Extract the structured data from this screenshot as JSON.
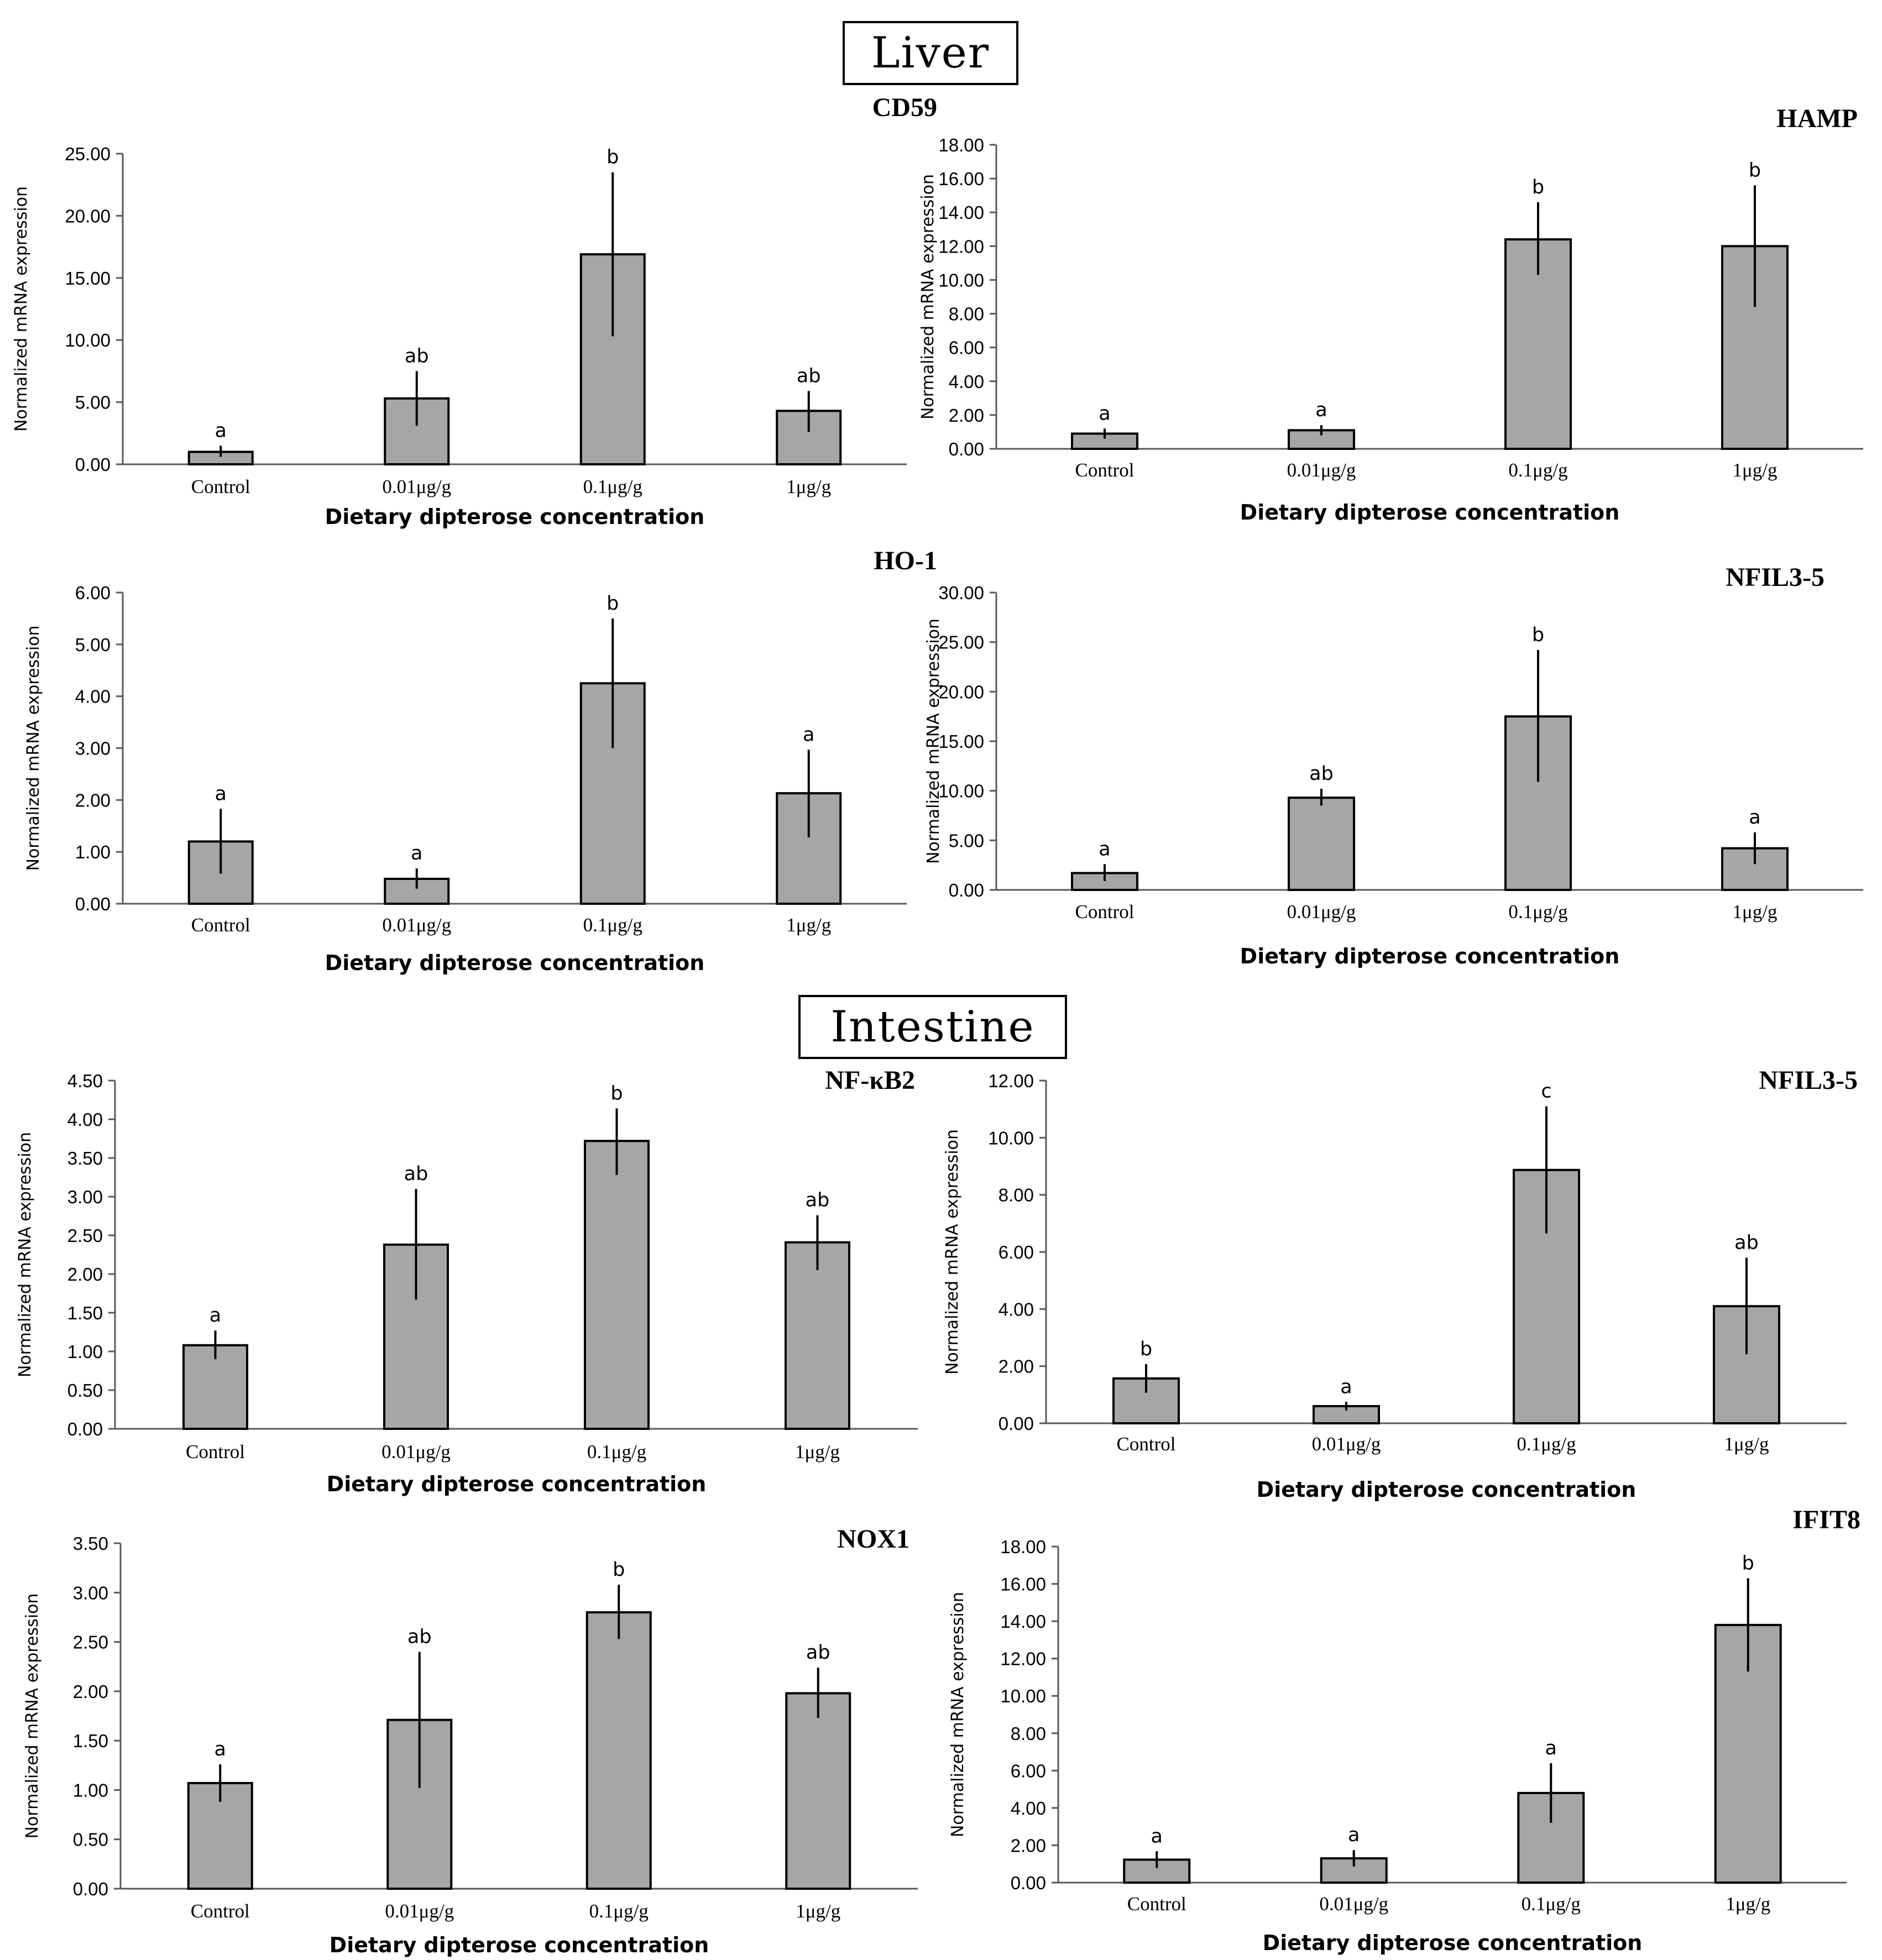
{
  "sections": {
    "liver": "Liver",
    "intestine": "Intestine"
  },
  "colors": {
    "bar_fill": "#a6a6a6",
    "bar_stroke": "#000000",
    "axis": "#595959"
  },
  "chart_data": [
    {
      "id": "liver-cd59",
      "type": "bar",
      "title": "CD59",
      "xlabel": "Dietary dipterose concentration",
      "ylabel": "Normalized mRNA expression",
      "categories": [
        "Control",
        "0.01μg/g",
        "0.1μg/g",
        "1μg/g"
      ],
      "values": [
        1.0,
        5.3,
        16.9,
        4.3
      ],
      "error_low": [
        0.6,
        3.1,
        10.3,
        2.6
      ],
      "error_high": [
        1.5,
        7.5,
        23.5,
        5.9
      ],
      "significance": [
        "a",
        "ab",
        "b",
        "ab"
      ],
      "ylim": [
        0,
        25
      ],
      "yticks": [
        "0.00",
        "5.00",
        "10.00",
        "15.00",
        "20.00",
        "25.00"
      ]
    },
    {
      "id": "liver-hamp",
      "type": "bar",
      "title": "HAMP",
      "xlabel": "Dietary dipterose concentration",
      "ylabel": "Normalized mRNA expression",
      "categories": [
        "Control",
        "0.01μg/g",
        "0.1μg/g",
        "1μg/g"
      ],
      "values": [
        0.9,
        1.1,
        12.4,
        12.0
      ],
      "error_low": [
        0.6,
        0.8,
        10.3,
        8.4
      ],
      "error_high": [
        1.2,
        1.4,
        14.6,
        15.6
      ],
      "significance": [
        "a",
        "a",
        "b",
        "b"
      ],
      "ylim": [
        0,
        18
      ],
      "yticks": [
        "0.00",
        "2.00",
        "4.00",
        "6.00",
        "8.00",
        "10.00",
        "12.00",
        "14.00",
        "16.00",
        "18.00"
      ]
    },
    {
      "id": "liver-ho1",
      "type": "bar",
      "title": "HO-1",
      "xlabel": "Dietary dipterose concentration",
      "ylabel": "Normalized mRNA expression",
      "categories": [
        "Control",
        "0.01μg/g",
        "0.1μg/g",
        "1μg/g"
      ],
      "values": [
        1.2,
        0.48,
        4.25,
        2.13
      ],
      "error_low": [
        0.58,
        0.29,
        3.0,
        1.28
      ],
      "error_high": [
        1.83,
        0.68,
        5.5,
        2.97
      ],
      "significance": [
        "a",
        "a",
        "b",
        "a"
      ],
      "ylim": [
        0,
        6
      ],
      "yticks": [
        "0.00",
        "1.00",
        "2.00",
        "3.00",
        "4.00",
        "5.00",
        "6.00"
      ]
    },
    {
      "id": "liver-nfil3-5",
      "type": "bar",
      "title": "NFIL3-5",
      "xlabel": "Dietary dipterose concentration",
      "ylabel": "Normalized mRNA expression",
      "categories": [
        "Control",
        "0.01μg/g",
        "0.1μg/g",
        "1μg/g"
      ],
      "values": [
        1.7,
        9.3,
        17.5,
        4.2
      ],
      "error_low": [
        0.9,
        8.5,
        10.9,
        2.6
      ],
      "error_high": [
        2.6,
        10.2,
        24.2,
        5.8
      ],
      "significance": [
        "a",
        "ab",
        "b",
        "a"
      ],
      "ylim": [
        0,
        30
      ],
      "yticks": [
        "0.00",
        "5.00",
        "10.00",
        "15.00",
        "20.00",
        "25.00",
        "30.00"
      ]
    },
    {
      "id": "intestine-nfkb2",
      "type": "bar",
      "title": "NF-κB2",
      "xlabel": "Dietary dipterose concentration",
      "ylabel": "Normalized mRNA expression",
      "categories": [
        "Control",
        "0.01μg/g",
        "0.1μg/g",
        "1μg/g"
      ],
      "values": [
        1.08,
        2.38,
        3.72,
        2.41
      ],
      "error_low": [
        0.9,
        1.67,
        3.28,
        2.05
      ],
      "error_high": [
        1.27,
        3.1,
        4.14,
        2.76
      ],
      "significance": [
        "a",
        "ab",
        "b",
        "ab"
      ],
      "ylim": [
        0,
        4.5
      ],
      "yticks": [
        "0.00",
        "0.50",
        "1.00",
        "1.50",
        "2.00",
        "2.50",
        "3.00",
        "3.50",
        "4.00",
        "4.50"
      ]
    },
    {
      "id": "intestine-nfil3-5",
      "type": "bar",
      "title": "NFIL3-5",
      "xlabel": "Dietary dipterose concentration",
      "ylabel": "Normalized mRNA expression",
      "categories": [
        "Control",
        "0.01μg/g",
        "0.1μg/g",
        "1μg/g"
      ],
      "values": [
        1.57,
        0.6,
        8.87,
        4.1
      ],
      "error_low": [
        1.07,
        0.45,
        6.65,
        2.42
      ],
      "error_high": [
        2.07,
        0.75,
        11.1,
        5.8
      ],
      "significance": [
        "b",
        "a",
        "c",
        "ab"
      ],
      "ylim": [
        0,
        12
      ],
      "yticks": [
        "0.00",
        "2.00",
        "4.00",
        "6.00",
        "8.00",
        "10.00",
        "12.00"
      ]
    },
    {
      "id": "intestine-nox1",
      "type": "bar",
      "title": "NOX1",
      "xlabel": "Dietary dipterose concentration",
      "ylabel": "Normalized mRNA expression",
      "categories": [
        "Control",
        "0.01μg/g",
        "0.1μg/g",
        "1μg/g"
      ],
      "values": [
        1.07,
        1.71,
        2.8,
        1.98
      ],
      "error_low": [
        0.88,
        1.02,
        2.53,
        1.73
      ],
      "error_high": [
        1.26,
        2.4,
        3.08,
        2.24
      ],
      "significance": [
        "a",
        "ab",
        "b",
        "ab"
      ],
      "ylim": [
        0,
        3.5
      ],
      "yticks": [
        "0.00",
        "0.50",
        "1.00",
        "1.50",
        "2.00",
        "2.50",
        "3.00",
        "3.50"
      ]
    },
    {
      "id": "intestine-ifit8",
      "type": "bar",
      "title": "IFIT8",
      "xlabel": "Dietary dipterose concentration",
      "ylabel": "Normalized mRNA expression",
      "categories": [
        "Control",
        "0.01μg/g",
        "0.1μg/g",
        "1μg/g"
      ],
      "values": [
        1.23,
        1.3,
        4.8,
        13.8
      ],
      "error_low": [
        0.78,
        0.86,
        3.2,
        11.3
      ],
      "error_high": [
        1.68,
        1.74,
        6.4,
        16.3
      ],
      "significance": [
        "a",
        "a",
        "a",
        "b"
      ],
      "ylim": [
        0,
        18
      ],
      "yticks": [
        "0.00",
        "2.00",
        "4.00",
        "6.00",
        "8.00",
        "10.00",
        "12.00",
        "14.00",
        "16.00",
        "18.00"
      ]
    }
  ]
}
